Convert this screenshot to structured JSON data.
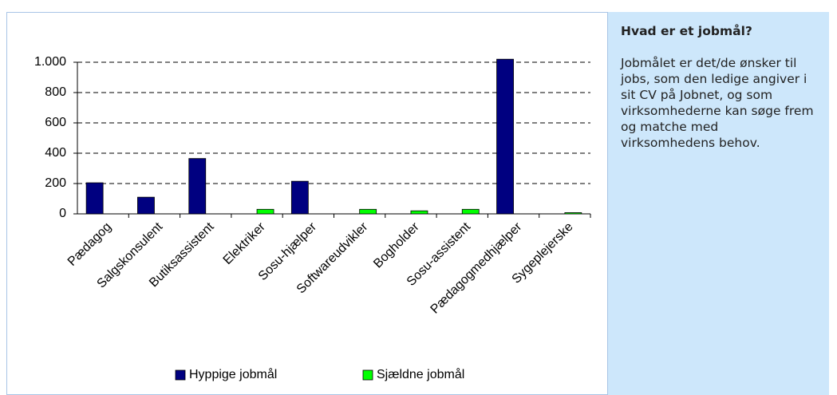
{
  "chart_data": {
    "type": "bar",
    "categories": [
      "Pædagog",
      "Salgskonsulent",
      "Butiksassistent",
      "Elektriker",
      "Sosu-hjælper",
      "Softwareudvikler",
      "Bogholder",
      "Sosu-assistent",
      "Pædagogmedhjælper",
      "Sygeplejerske"
    ],
    "series": [
      {
        "name": "Hyppige jobmål",
        "color": "#000080",
        "values": [
          205,
          110,
          365,
          null,
          215,
          null,
          null,
          null,
          1020,
          null
        ]
      },
      {
        "name": "Sjældne jobmål",
        "color": "#00ff00",
        "values": [
          null,
          null,
          null,
          30,
          null,
          30,
          20,
          30,
          null,
          8
        ]
      }
    ],
    "ylim": [
      0,
      1000
    ],
    "yticks": [
      0,
      200,
      400,
      600,
      800,
      {
        "value": 1000,
        "label": "1.000"
      }
    ],
    "grid": true,
    "legend": "bottom"
  },
  "sidebar": {
    "title": "Hvad er et jobmål?",
    "text": "Jobmålet er det/de ønsker til jobs, som den ledige angiver i sit CV på Jobnet, og som virksomhederne kan søge frem og matche med virksomhedens behov."
  }
}
